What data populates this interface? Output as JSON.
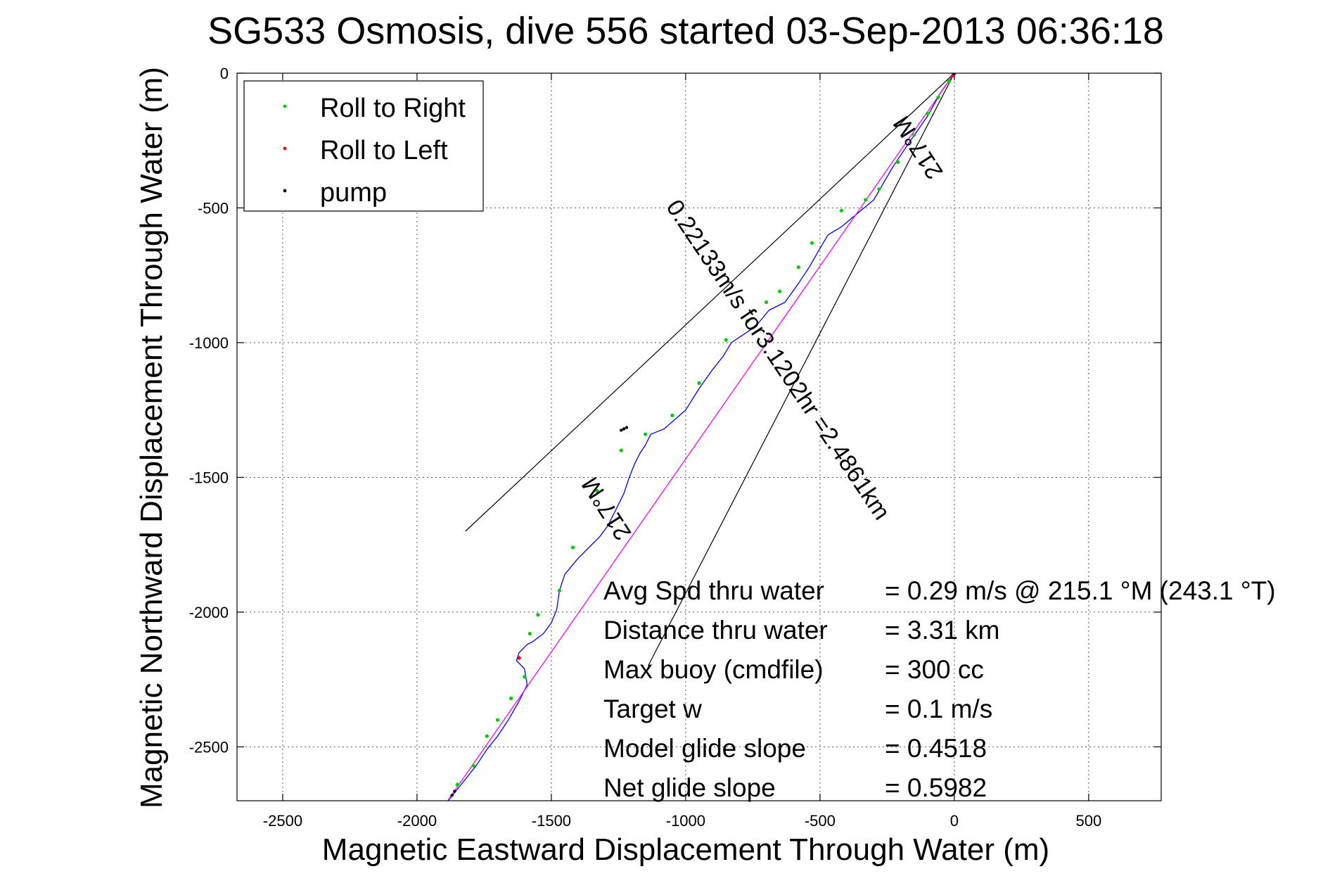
{
  "chart_data": {
    "type": "line",
    "title": "SG533 Osmosis, dive 556 started 03-Sep-2013 06:36:18",
    "xlabel": "Magnetic Eastward Displacement Through Water (m)",
    "ylabel": "Magnetic Northward Displacement Through Water (m)",
    "xlim": [
      -2670,
      770
    ],
    "ylim": [
      -2700,
      0
    ],
    "xticks": [
      -2500,
      -2000,
      -1500,
      -1000,
      -500,
      0,
      500
    ],
    "yticks": [
      0,
      -500,
      -1000,
      -1500,
      -2000,
      -2500
    ],
    "xtick_labels": [
      "-2500",
      "-2000",
      "-1500",
      "-1000",
      "-500",
      "0",
      "500"
    ],
    "ytick_labels": [
      "0",
      "-500",
      "-1000",
      "-1500",
      "-2000",
      "-2500"
    ],
    "grid": true,
    "legend_position": "top-left",
    "legend": [
      {
        "label": "Roll to Right",
        "color": "#00cc00"
      },
      {
        "label": "Roll to Left",
        "color": "#ff0000"
      },
      {
        "label": "pump",
        "color": "#000000"
      }
    ],
    "series": [
      {
        "color": "#0000ff",
        "x": [
          0,
          -50,
          -100,
          -170,
          -230,
          -300,
          -360,
          -420,
          -470,
          -500,
          -540,
          -580,
          -630,
          -690,
          -740,
          -800,
          -830,
          -860,
          -900,
          -950,
          -1000,
          -1080,
          -1130,
          -1150,
          -1170,
          -1190,
          -1210,
          -1230,
          -1260,
          -1290,
          -1320,
          -1360,
          -1400,
          -1450,
          -1470,
          -1480,
          -1500,
          -1530,
          -1570,
          -1590,
          -1620,
          -1630,
          -1600,
          -1590,
          -1620,
          -1660,
          -1700,
          -1740,
          -1780,
          -1820,
          -1860,
          -1900
        ],
        "y": [
          0,
          -70,
          -160,
          -260,
          -350,
          -470,
          -520,
          -570,
          -600,
          -650,
          -720,
          -780,
          -850,
          -880,
          -940,
          -980,
          -1000,
          -1050,
          -1100,
          -1170,
          -1250,
          -1320,
          -1340,
          -1380,
          -1410,
          -1450,
          -1500,
          -1560,
          -1620,
          -1680,
          -1720,
          -1760,
          -1800,
          -1860,
          -1920,
          -1990,
          -2040,
          -2080,
          -2110,
          -2120,
          -2150,
          -2180,
          -2210,
          -2270,
          -2330,
          -2400,
          -2460,
          -2510,
          -2570,
          -2620,
          -2670,
          -2720
        ]
      },
      {
        "color": "#ff00ff",
        "x": [
          0,
          -1900
        ],
        "y": [
          0,
          -2720
        ]
      }
    ],
    "guide_lines": [
      {
        "color": "#000000",
        "x": [
          0,
          -1820
        ],
        "y": [
          0,
          -1700
        ]
      },
      {
        "color": "#000000",
        "x": [
          0,
          -1140
        ],
        "y": [
          0,
          -2200
        ]
      }
    ],
    "markers": {
      "roll_right": {
        "color": "#00cc00",
        "x": [
          -20,
          -60,
          -100,
          -150,
          -210,
          -280,
          -330,
          -420,
          -530,
          -580,
          -650,
          -700,
          -770,
          -850,
          -950,
          -1050,
          -1150,
          -1240,
          -1330,
          -1420,
          -1470,
          -1550,
          -1580,
          -1600,
          -1650,
          -1700,
          -1740,
          -1790,
          -1850
        ],
        "y": [
          -30,
          -90,
          -150,
          -230,
          -330,
          -430,
          -470,
          -510,
          -630,
          -720,
          -810,
          -850,
          -920,
          -990,
          -1150,
          -1270,
          -1340,
          -1400,
          -1550,
          -1760,
          -1920,
          -2010,
          -2080,
          -2240,
          -2320,
          -2400,
          -2460,
          -2570,
          -2640
        ]
      },
      "roll_left": {
        "color": "#ff0000",
        "x": [
          -2,
          -5,
          -1620
        ],
        "y": [
          -3,
          -8,
          -2170
        ]
      },
      "pump": {
        "color": "#000000",
        "x": [
          -1,
          -1220,
          -1230,
          -1240,
          -1860,
          -1870
        ],
        "y": [
          -2,
          -1315,
          -1320,
          -1325,
          -2665,
          -2680
        ]
      }
    },
    "annotations": [
      {
        "text": "217°M",
        "x": -110,
        "y": -260,
        "rotation_deg": 237
      },
      {
        "text": "0.22133m/s for3.1202hr =2.4861km",
        "x": -680,
        "y": -1080,
        "rotation_deg": 56
      },
      {
        "text": "217°M",
        "x": -1270,
        "y": -1600,
        "rotation_deg": 237
      }
    ],
    "stats": [
      {
        "label": "Avg Spd thru water",
        "value": "=  0.29 m/s @ 215.1 °M (243.1 °T)"
      },
      {
        "label": "Distance thru water",
        "value": "=  3.31 km"
      },
      {
        "label": "Max buoy (cmdfile)",
        "value": "= 300 cc"
      },
      {
        "label": "Target w",
        "value": "= 0.1 m/s"
      },
      {
        "label": "Model glide slope",
        "value": "= 0.4518"
      },
      {
        "label": "Net glide slope",
        "value": "= 0.5982"
      }
    ]
  }
}
